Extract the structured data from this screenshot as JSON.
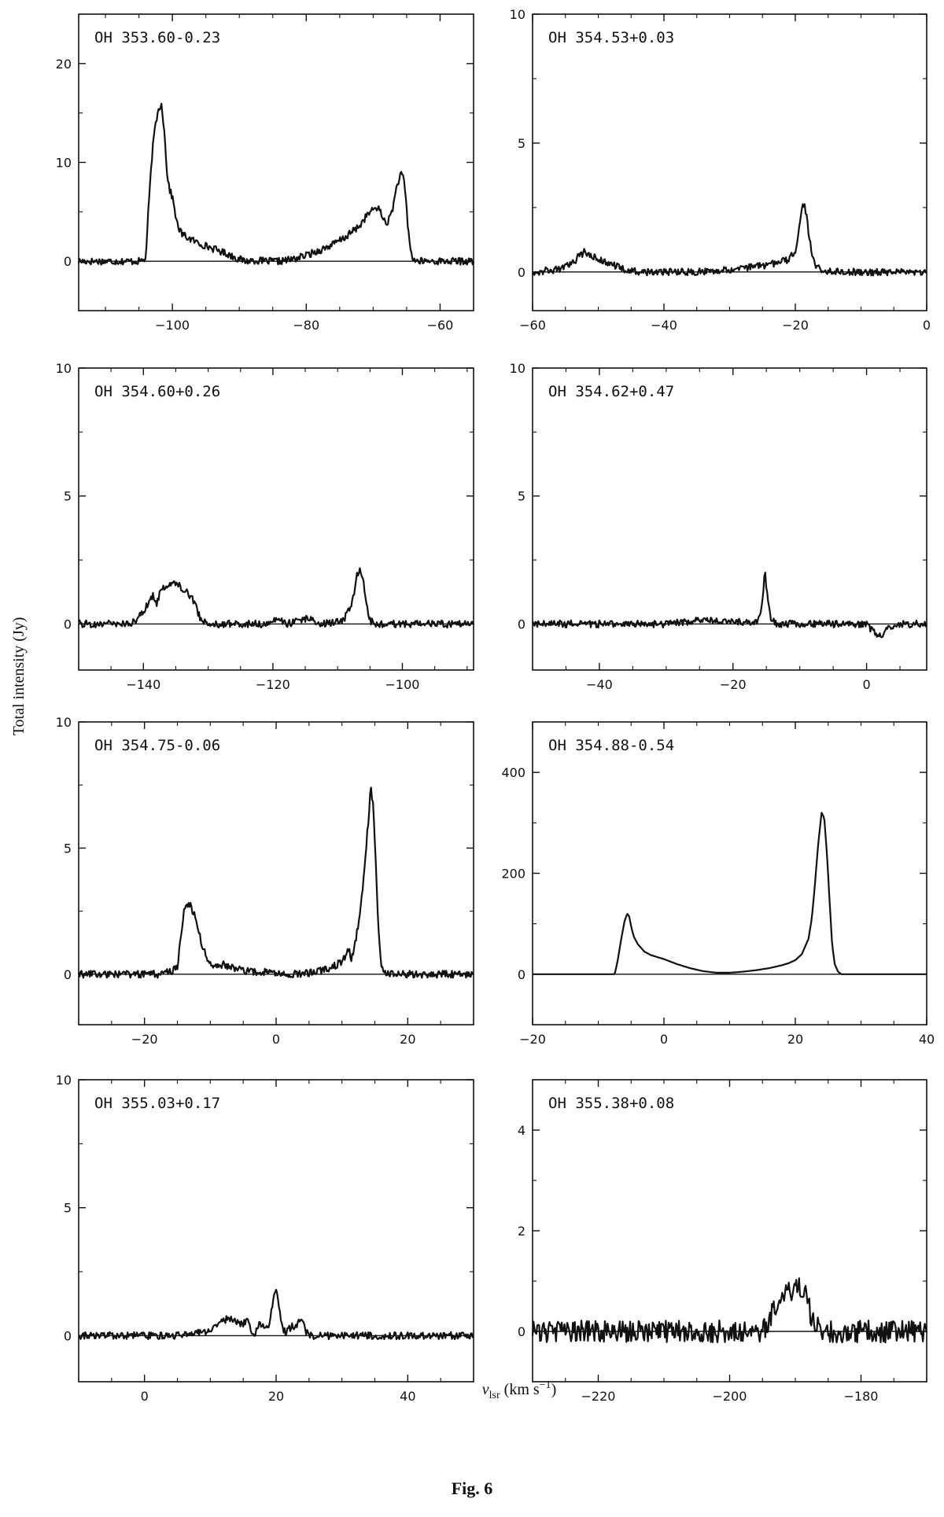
{
  "figure": {
    "caption": "Fig. 6",
    "ylabel": "Total intensity (Jy)",
    "xlabel_main": "v",
    "xlabel_sub": "lsr",
    "xlabel_unit": " (km s",
    "xlabel_exp": "−1",
    "xlabel_close": ")"
  },
  "chart_data": [
    {
      "type": "line",
      "label": "OH 353.60-0.23",
      "xlim": [
        -114,
        -55
      ],
      "ylim": [
        -5,
        25
      ],
      "xticks": [
        -100,
        -80,
        -60
      ],
      "yticks": [
        0,
        10,
        20
      ],
      "x": [
        -114,
        -108,
        -105,
        -104,
        -103.5,
        -103,
        -102.5,
        -102,
        -101.6,
        -101.2,
        -100.8,
        -100.4,
        -100,
        -99.6,
        -99.2,
        -98.5,
        -97.5,
        -96,
        -94,
        -92,
        -90,
        -89,
        -88,
        -86,
        -84,
        -82,
        -80,
        -78,
        -76,
        -74,
        -72,
        -71,
        -70,
        -69.5,
        -69,
        -68.5,
        -68,
        -67.5,
        -67,
        -66.5,
        -66,
        -65.6,
        -65.2,
        -64.8,
        -64.4,
        -64,
        -63.5,
        -62,
        -60,
        -58,
        -55
      ],
      "y": [
        0,
        0,
        0,
        0.2,
        6,
        11,
        14,
        15.5,
        16,
        13,
        9,
        7.2,
        6.5,
        5,
        3.5,
        2.7,
        2.3,
        1.8,
        1.3,
        0.8,
        0.2,
        0,
        0.1,
        0,
        0,
        0.2,
        0.6,
        1.1,
        1.7,
        2.5,
        3.6,
        4.6,
        5.2,
        5.5,
        5.1,
        4.3,
        3.8,
        4.4,
        5.6,
        7.5,
        8.6,
        8.8,
        7,
        3.5,
        1,
        0.2,
        0,
        0,
        0,
        0,
        0
      ]
    },
    {
      "type": "line",
      "label": "OH 354.53+0.03",
      "xlim": [
        -60,
        0
      ],
      "ylim": [
        -1.5,
        10
      ],
      "xticks": [
        -60,
        -40,
        -20,
        0
      ],
      "yticks": [
        0,
        5,
        10
      ],
      "x": [
        -60,
        -56,
        -54,
        -53,
        -52,
        -51,
        -50,
        -48,
        -46,
        -44,
        -40,
        -35,
        -30,
        -26,
        -24,
        -22,
        -21,
        -20,
        -19.5,
        -19,
        -18.6,
        -18.2,
        -17.8,
        -17.4,
        -17,
        -16,
        -14,
        -10,
        -5,
        0
      ],
      "y": [
        0,
        0.1,
        0.3,
        0.6,
        0.8,
        0.6,
        0.5,
        0.3,
        0.1,
        0,
        0,
        0,
        0.1,
        0.2,
        0.3,
        0.4,
        0.5,
        0.8,
        1.5,
        2.5,
        2.7,
        2,
        1.2,
        0.6,
        0.3,
        0.1,
        0,
        0,
        0,
        0
      ]
    },
    {
      "type": "line",
      "label": "OH 354.60+0.26",
      "xlim": [
        -150,
        -89
      ],
      "ylim": [
        -1.8,
        10
      ],
      "xticks": [
        -140,
        -120,
        -100
      ],
      "yticks": [
        0,
        5,
        10
      ],
      "x": [
        -150,
        -146,
        -142,
        -141,
        -140,
        -139,
        -138.5,
        -138,
        -137.5,
        -137,
        -136,
        -135,
        -134,
        -133,
        -132,
        -131.5,
        -131,
        -130,
        -128,
        -124,
        -120,
        -119.5,
        -118,
        -115,
        -112,
        -110,
        -109,
        -108,
        -107.5,
        -107,
        -106.5,
        -106,
        -105.6,
        -105.2,
        -104.8,
        -104.4,
        -104,
        -102,
        -98,
        -95,
        -89
      ],
      "y": [
        0,
        0,
        0,
        0.2,
        0.5,
        0.9,
        1.1,
        0.7,
        1.2,
        1.4,
        1.6,
        1.6,
        1.4,
        1.2,
        0.8,
        0.4,
        0.1,
        0,
        0,
        0,
        0,
        0.3,
        0,
        0.2,
        0,
        0.1,
        0.2,
        0.6,
        1.2,
        1.9,
        2.1,
        1.7,
        0.8,
        0.3,
        0.1,
        0,
        0,
        0,
        0,
        0,
        0
      ]
    },
    {
      "type": "line",
      "label": "OH 354.62+0.47",
      "xlim": [
        -50,
        9
      ],
      "ylim": [
        -1.8,
        10
      ],
      "xticks": [
        -40,
        -20,
        0
      ],
      "yticks": [
        0,
        5,
        10
      ],
      "x": [
        -50,
        -40,
        -30,
        -26,
        -24,
        -22,
        -20,
        -17,
        -16,
        -15.6,
        -15.2,
        -14.8,
        -14.4,
        -14,
        -13.6,
        -13,
        -10,
        -6,
        -2,
        0,
        1,
        2,
        3,
        5,
        9
      ],
      "y": [
        0,
        0,
        0,
        0.1,
        0.2,
        0.1,
        0.1,
        0,
        0.2,
        1,
        2,
        1,
        0.3,
        0.1,
        0,
        0,
        0,
        0,
        0,
        0,
        -0.3,
        -0.5,
        -0.2,
        0,
        0
      ]
    },
    {
      "type": "line",
      "label": "OH 354.75-0.06",
      "xlim": [
        -30,
        30
      ],
      "ylim": [
        -2,
        10
      ],
      "xticks": [
        -20,
        0,
        20
      ],
      "yticks": [
        0,
        5,
        10
      ],
      "x": [
        -30,
        -20,
        -18,
        -16,
        -15,
        -14.5,
        -14,
        -13.5,
        -13,
        -12.5,
        -12,
        -11.5,
        -11,
        -10.5,
        -10,
        -9,
        -8,
        -6,
        -4,
        -2,
        0,
        4,
        8,
        10,
        11,
        11.5,
        12,
        12.5,
        13,
        13.5,
        14,
        14.4,
        14.8,
        15.2,
        15.6,
        16,
        16.5,
        17,
        20,
        25,
        30
      ],
      "y": [
        0,
        0,
        0,
        0.1,
        0.3,
        1.5,
        2.5,
        2.8,
        2.7,
        2.4,
        1.9,
        1.4,
        1,
        0.6,
        0.4,
        0.3,
        0.4,
        0.2,
        0.1,
        0.1,
        0,
        0,
        0.2,
        0.5,
        1,
        0.6,
        1.2,
        2,
        3,
        4.5,
        6,
        7.5,
        6.5,
        4,
        1.5,
        0.3,
        0,
        0,
        0,
        0,
        0
      ]
    },
    {
      "type": "line",
      "label": "OH 354.88-0.54",
      "xlim": [
        -20,
        40
      ],
      "ylim": [
        -100,
        500
      ],
      "xticks": [
        -20,
        0,
        20,
        40
      ],
      "yticks": [
        0,
        200,
        400
      ],
      "noise": 0,
      "x": [
        -20,
        -7.5,
        -7,
        -6.5,
        -6,
        -5.6,
        -5.3,
        -5,
        -4.6,
        -4,
        -3,
        -2,
        0,
        2,
        4,
        6,
        8,
        10,
        12,
        14,
        16,
        18,
        19,
        20,
        21,
        22,
        22.5,
        23,
        23.5,
        24,
        24.4,
        24.8,
        25.2,
        25.6,
        26,
        26.5,
        27,
        40
      ],
      "y": [
        0,
        0,
        30,
        70,
        105,
        120,
        115,
        95,
        75,
        60,
        45,
        38,
        30,
        20,
        12,
        6,
        3,
        3,
        5,
        8,
        12,
        18,
        22,
        28,
        40,
        70,
        110,
        180,
        260,
        320,
        310,
        240,
        150,
        60,
        20,
        5,
        0,
        0
      ]
    },
    {
      "type": "line",
      "label": "OH 355.03+0.17",
      "xlim": [
        -10,
        50
      ],
      "ylim": [
        -1.8,
        10
      ],
      "xticks": [
        0,
        20,
        40
      ],
      "yticks": [
        0,
        5,
        10
      ],
      "x": [
        -10,
        4,
        8,
        10,
        11,
        12,
        13,
        14,
        15,
        15.5,
        16,
        16.5,
        17,
        17.5,
        18,
        18.5,
        19,
        19.5,
        20,
        20.5,
        21,
        21.5,
        22,
        23,
        23.5,
        24,
        24.5,
        25,
        26,
        30,
        50
      ],
      "y": [
        0,
        0,
        0.1,
        0.2,
        0.4,
        0.6,
        0.7,
        0.5,
        0.4,
        0.7,
        0.3,
        -0.1,
        0.2,
        0.5,
        0.4,
        0.2,
        0.5,
        1.2,
        1.9,
        1,
        0.3,
        0.1,
        0.3,
        0.4,
        0.6,
        0.5,
        0.2,
        0,
        0,
        0,
        0
      ]
    },
    {
      "type": "line",
      "label": "OH 355.38+0.08",
      "xlim": [
        -230,
        -170
      ],
      "ylim": [
        -1,
        5
      ],
      "xticks": [
        -220,
        -200,
        -180
      ],
      "yticks": [
        0,
        2,
        4
      ],
      "noise": 0.22,
      "x": [
        -230,
        -200,
        -195,
        -194,
        -193,
        -192,
        -191,
        -190,
        -189.5,
        -189,
        -188.5,
        -188,
        -187,
        -186,
        -185,
        -170
      ],
      "y": [
        0,
        0,
        0,
        0.2,
        0.5,
        0.8,
        0.8,
        0.85,
        0.9,
        0.9,
        0.8,
        0.5,
        0.1,
        0,
        0,
        0
      ]
    }
  ]
}
